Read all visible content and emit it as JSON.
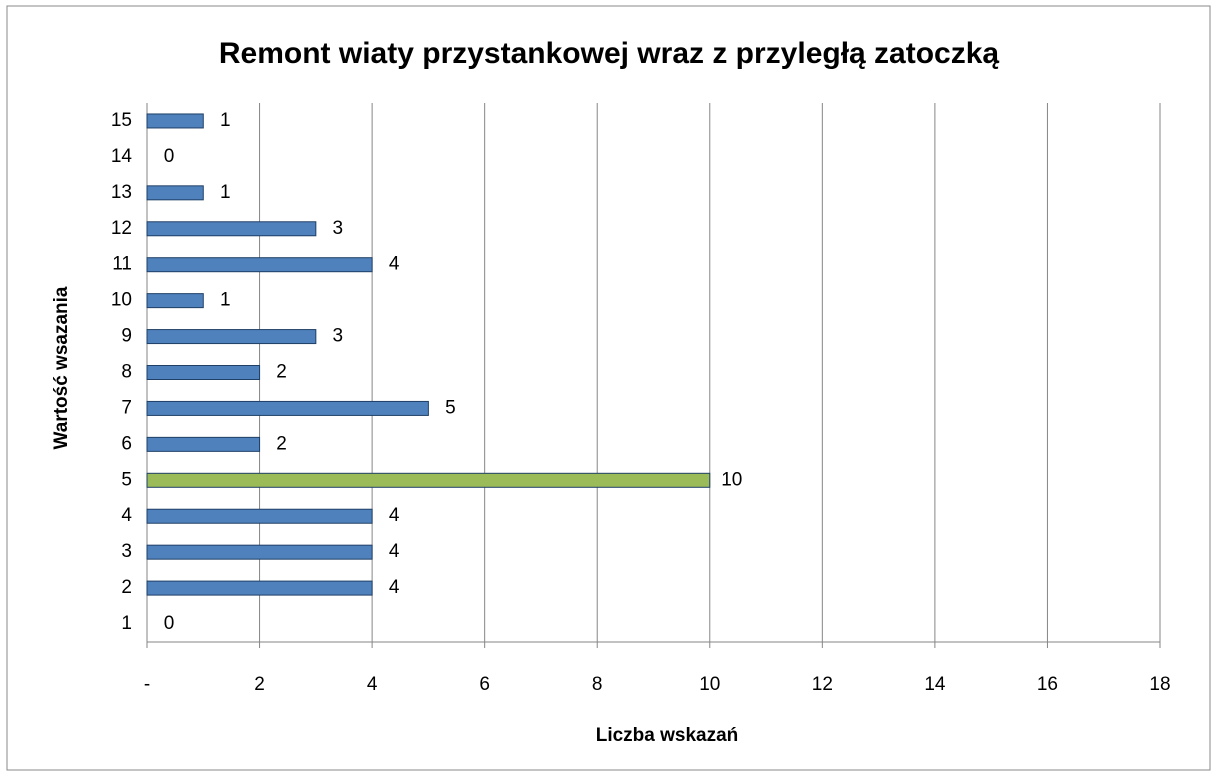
{
  "chart_data": {
    "type": "bar",
    "orientation": "horizontal",
    "title": "Remont wiaty przystankowej wraz z przyległą zatoczką",
    "xlabel": "Liczba wskazań",
    "ylabel": "Wartość wsazania",
    "categories": [
      "1",
      "2",
      "3",
      "4",
      "5",
      "6",
      "7",
      "8",
      "9",
      "10",
      "11",
      "12",
      "13",
      "14",
      "15"
    ],
    "values": [
      0,
      4,
      4,
      4,
      10,
      2,
      5,
      2,
      3,
      1,
      4,
      3,
      1,
      0,
      1
    ],
    "colors": [
      "#4f81bd",
      "#4f81bd",
      "#4f81bd",
      "#4f81bd",
      "#9bbb59",
      "#4f81bd",
      "#4f81bd",
      "#4f81bd",
      "#4f81bd",
      "#4f81bd",
      "#4f81bd",
      "#4f81bd",
      "#4f81bd",
      "#4f81bd",
      "#4f81bd"
    ],
    "xlim": [
      0,
      18
    ],
    "xticks": [
      {
        "value": 0,
        "label": "-"
      },
      2,
      4,
      6,
      8,
      10,
      12,
      14,
      16,
      18
    ],
    "grid": true
  }
}
